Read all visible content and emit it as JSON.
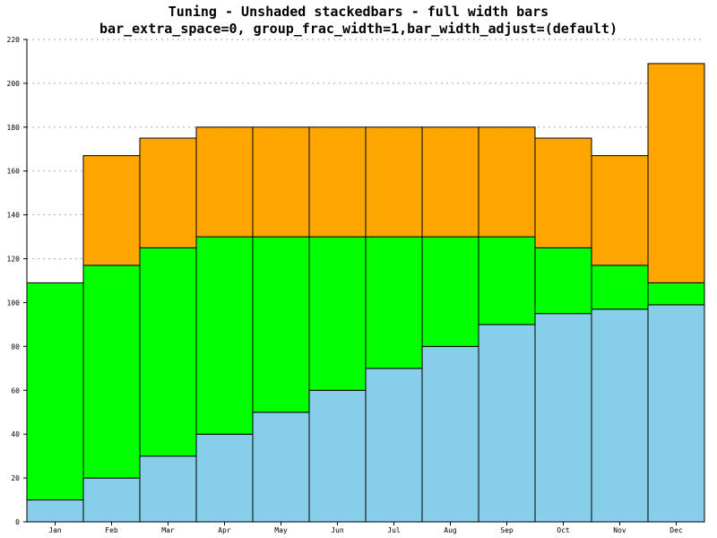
{
  "chart_data": {
    "type": "bar",
    "stacked": true,
    "title": "Tuning - Unshaded stackedbars - full width bars",
    "subtitle": "bar_extra_space=0, group_frac_width=1,bar_width_adjust=(default)",
    "categories": [
      "Jan",
      "Feb",
      "Mar",
      "Apr",
      "May",
      "Jun",
      "Jul",
      "Aug",
      "Sep",
      "Oct",
      "Nov",
      "Dec"
    ],
    "series": [
      {
        "values": [
          10,
          20,
          30,
          40,
          50,
          60,
          70,
          80,
          90,
          95,
          97,
          99
        ]
      },
      {
        "values": [
          99,
          97,
          95,
          90,
          80,
          70,
          60,
          50,
          40,
          30,
          20,
          10
        ]
      },
      {
        "values": [
          0,
          50,
          50,
          50,
          50,
          50,
          50,
          50,
          50,
          50,
          50,
          100
        ]
      }
    ],
    "colors": [
      "#87ceeb",
      "#00ff00",
      "#ffa500"
    ],
    "ylim": [
      0,
      220
    ],
    "yticks": [
      0,
      20,
      40,
      60,
      80,
      100,
      120,
      140,
      160,
      180,
      200,
      220
    ],
    "grid": true,
    "grid_style": "dotted-horizontal",
    "legend": "none"
  }
}
